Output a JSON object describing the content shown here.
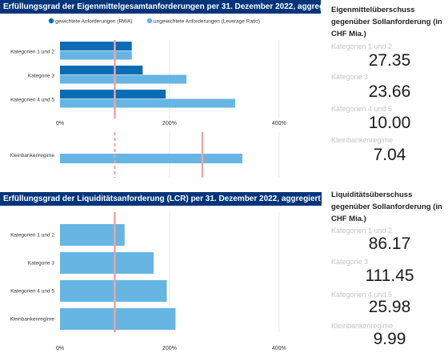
{
  "top_panel": {
    "title": "Erfüllungsgrad der Eigenmittelgesamtanforderungen per 31. Dezember 2022, aggregiert"
  },
  "bottom_panel": {
    "title": "Erfüllungsgrad der Liquiditätsanforderung (LCR) per 31. Dezember 2022, aggregiert"
  },
  "side_top": {
    "title": "Eigenmittelüberschuss gegenüber Sollanforderung (in CHF Mia.)",
    "items": [
      {
        "label": "Kategorien 1 und 2",
        "value": "27.35"
      },
      {
        "label": "Kategorie 3",
        "value": "23.66"
      },
      {
        "label": "Kategorien 4 und 5",
        "value": "10.00"
      },
      {
        "label": "Kleinbankenregime",
        "value": "7.04"
      }
    ]
  },
  "side_bottom": {
    "title": "Liquiditätsüberschuss gegenüber Sollanforderung (in CHF Mia.)",
    "items": [
      {
        "label": "Kategorien 1 und 2",
        "value": "86.17"
      },
      {
        "label": "Kategorie 3",
        "value": "111.45"
      },
      {
        "label": "Kategorien 4 und 5",
        "value": "25.98"
      },
      {
        "label": "Kleinbankenregime",
        "value": "9.99"
      }
    ]
  },
  "colors": {
    "dark_blue": "#0a6cb3",
    "light_blue": "#66b5e3",
    "reference_line": "#f0a3a3",
    "header_bg": "#00357a"
  },
  "chart_data": [
    {
      "type": "bar",
      "orientation": "horizontal",
      "title": "Erfüllungsgrad der Eigenmittelgesamtanforderungen per 31. Dezember 2022, aggregiert",
      "categories": [
        "Kategorien 1 und 2",
        "Kategorie 3",
        "Kategorien 4 und 5"
      ],
      "series": [
        {
          "name": "gewichtete Anforderungen (RWA)",
          "color": "#0a6cb3",
          "values": [
            131,
            151,
            193
          ]
        },
        {
          "name": "ungewichtete Anforderungen (Leverage Ratio)",
          "color": "#66b5e3",
          "values": [
            131,
            231,
            320
          ]
        }
      ],
      "xlim": [
        0,
        450
      ],
      "xticks": [
        "0%",
        "200%",
        "400%"
      ],
      "xtick_values": [
        0,
        200,
        400
      ],
      "reference_line": 100,
      "legend": "top",
      "grid": true
    },
    {
      "type": "bar",
      "orientation": "horizontal",
      "categories": [
        "Kleinbankenregime"
      ],
      "series": [
        {
          "name": "ungewichtete Anforderungen (Leverage Ratio)",
          "color": "#66b5e3",
          "values": [
            333
          ]
        }
      ],
      "xlim": [
        0,
        450
      ],
      "reference_line_dashed": 100,
      "reference_line": 260,
      "grid": true
    },
    {
      "type": "bar",
      "orientation": "horizontal",
      "title": "Erfüllungsgrad der Liquiditätsanforderung (LCR) per 31. Dezember 2022, aggregiert",
      "categories": [
        "Kategorien 1 und 2",
        "Kategorie 3",
        "Kategorien 4 und 5",
        "Kleinbankenregime"
      ],
      "series": [
        {
          "name": "LCR",
          "color": "#66b5e3",
          "values": [
            118,
            171,
            195,
            211
          ]
        }
      ],
      "xlim": [
        0,
        450
      ],
      "xticks": [
        "0%",
        "200%",
        "400%"
      ],
      "xtick_values": [
        0,
        200,
        400
      ],
      "reference_line": 100,
      "grid": true
    }
  ]
}
